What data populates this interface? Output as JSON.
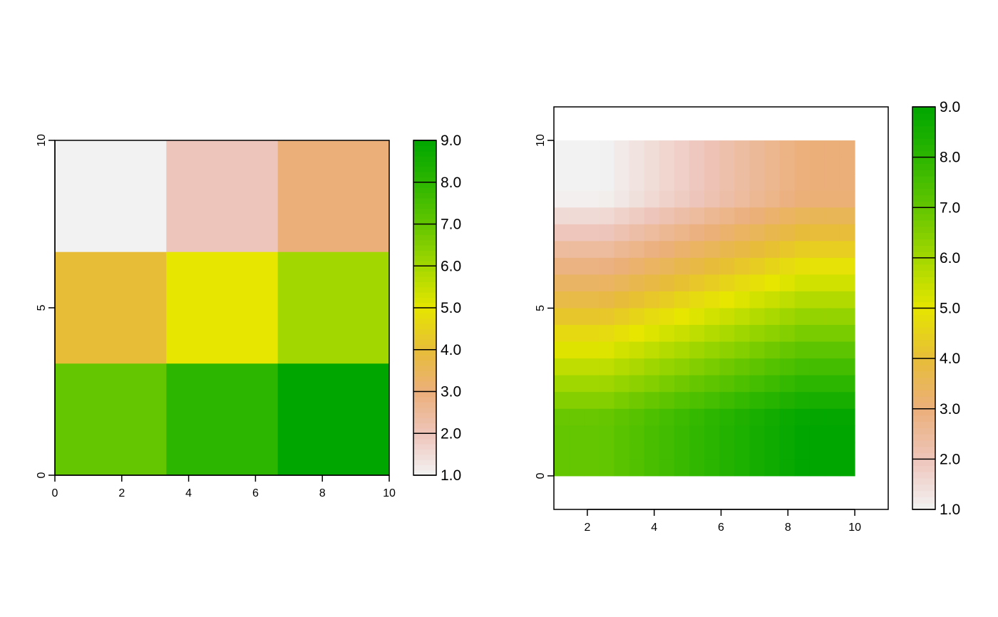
{
  "chart_data": [
    {
      "type": "heatmap",
      "title": "",
      "xlabel": "",
      "ylabel": "",
      "xlim": [
        0,
        10
      ],
      "ylim": [
        0,
        10
      ],
      "x_ticks": [
        "0",
        "2",
        "4",
        "6",
        "8",
        "10"
      ],
      "y_ticks": [
        "0",
        "5",
        "10"
      ],
      "rows": 3,
      "cols": 3,
      "values": [
        [
          1,
          2,
          3
        ],
        [
          4,
          5,
          6
        ],
        [
          7,
          8,
          9
        ]
      ],
      "legend": {
        "min": 1.0,
        "max": 9.0,
        "ticks": [
          "1.0",
          "2.0",
          "3.0",
          "4.0",
          "5.0",
          "6.0",
          "7.0",
          "8.0",
          "9.0"
        ]
      },
      "grid": false
    },
    {
      "type": "heatmap",
      "title": "",
      "xlabel": "",
      "ylabel": "",
      "xlim": [
        1,
        11
      ],
      "ylim": [
        -1,
        11
      ],
      "raster_extent_x": [
        1,
        10
      ],
      "raster_extent_y": [
        0,
        10
      ],
      "x_ticks": [
        "2",
        "4",
        "6",
        "8",
        "10"
      ],
      "y_ticks": [
        "0",
        "5",
        "10"
      ],
      "rows": 20,
      "cols": 20,
      "values": "resampled (bilinear) from the 3x3 grid [[1,2,3],[4,5,6],[7,8,9]]",
      "legend": {
        "min": 1.0,
        "max": 9.0,
        "ticks": [
          "1.0",
          "2.0",
          "3.0",
          "4.0",
          "5.0",
          "6.0",
          "7.0",
          "8.0",
          "9.0"
        ]
      },
      "grid": false,
      "boxed": true
    }
  ],
  "colors": {
    "palette": [
      "#F2F2F2",
      "#EEC5BA",
      "#EBAF7A",
      "#E7BD38",
      "#E6E600",
      "#A3D700",
      "#63C600",
      "#2DB600",
      "#00A600"
    ]
  }
}
